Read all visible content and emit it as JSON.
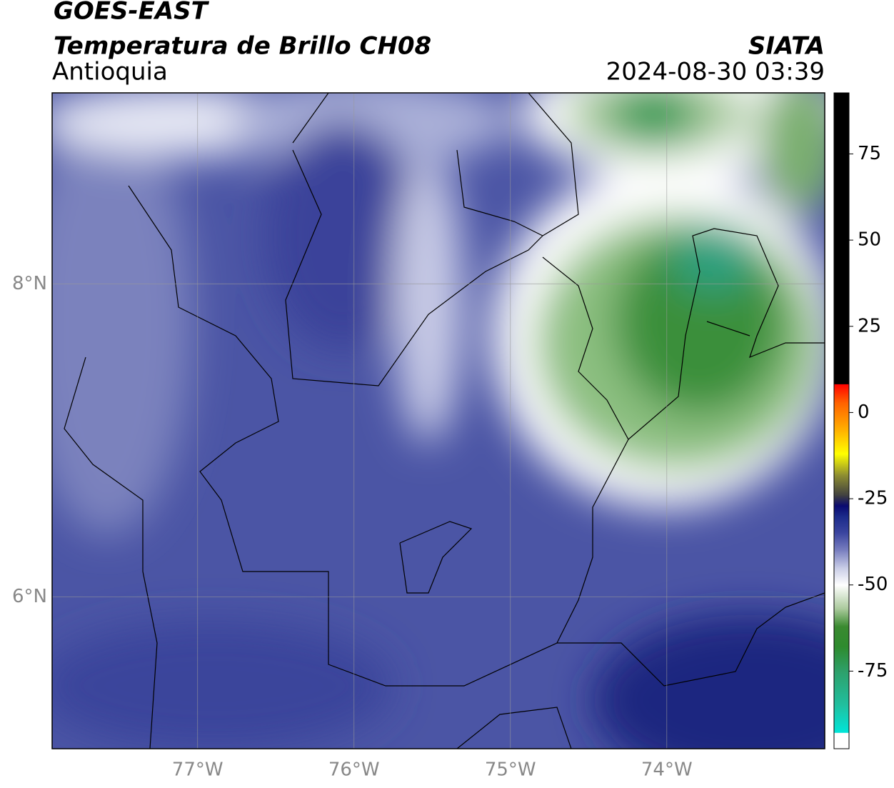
{
  "header": {
    "title": "GOES-EAST",
    "subtitle": "Temperatura de Brillo CH08",
    "region": "Antioquia",
    "source": "SIATA",
    "timestamp": "2024-08-30 03:39"
  },
  "map": {
    "xlim": [
      -77.93,
      -72.99
    ],
    "ylim": [
      5.03,
      9.22
    ],
    "xticks": [
      {
        "value": -77,
        "label": "77°W"
      },
      {
        "value": -76,
        "label": "76°W"
      },
      {
        "value": -75,
        "label": "75°W"
      },
      {
        "value": -74,
        "label": "74°W"
      }
    ],
    "yticks": [
      {
        "value": 6,
        "label": "6°N"
      },
      {
        "value": 8,
        "label": "8°N"
      }
    ],
    "grid": true
  },
  "colorbar": {
    "lim": [
      -97.5,
      92.7
    ],
    "ticks": [
      -75,
      -50,
      -25,
      0,
      25,
      50,
      75
    ],
    "stops": [
      {
        "value": -97.5,
        "color": "#ffffff"
      },
      {
        "value": -92.8,
        "color": "#ffffff"
      },
      {
        "value": -92.8,
        "color": "#00e5d8"
      },
      {
        "value": -85,
        "color": "#20c0a0"
      },
      {
        "value": -75,
        "color": "#2ea06a"
      },
      {
        "value": -68,
        "color": "#2e8b2e"
      },
      {
        "value": -62,
        "color": "#3a8a30"
      },
      {
        "value": -57,
        "color": "#a8c89a"
      },
      {
        "value": -50,
        "color": "#ffffff"
      },
      {
        "value": -45,
        "color": "#c8cce6"
      },
      {
        "value": -40,
        "color": "#7a80c0"
      },
      {
        "value": -35,
        "color": "#3c46a0"
      },
      {
        "value": -30,
        "color": "#1a2a8a"
      },
      {
        "value": -27,
        "color": "#0a0a70"
      },
      {
        "value": -24,
        "color": "#404040"
      },
      {
        "value": -18,
        "color": "#909030"
      },
      {
        "value": -12,
        "color": "#ffff00"
      },
      {
        "value": -5,
        "color": "#ffb000"
      },
      {
        "value": 3,
        "color": "#ff6000"
      },
      {
        "value": 8.3,
        "color": "#ff0000"
      },
      {
        "value": 8.3,
        "color": "#000000"
      },
      {
        "value": 92.7,
        "color": "#000000"
      }
    ]
  }
}
